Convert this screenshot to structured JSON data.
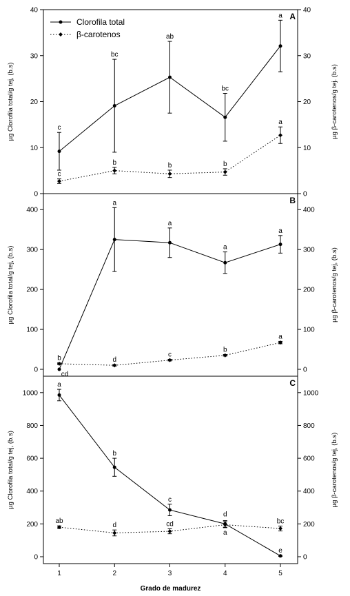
{
  "chart_data": [
    {
      "type": "line",
      "panel_label": "A",
      "x": [
        1,
        2,
        3,
        4,
        5
      ],
      "left_axis": {
        "label": "µg Clorofila total/g tej, (b.s)",
        "ylim": [
          0,
          40
        ],
        "ticks": [
          0,
          10,
          20,
          30,
          40
        ]
      },
      "right_axis": {
        "label": "µg β-carotenos/g tej. (b.s)",
        "ylim": [
          0,
          40
        ],
        "ticks": [
          0,
          10,
          20,
          30,
          40
        ]
      },
      "legend": {
        "position": "top-left",
        "entries": [
          "Clorofila total",
          "β-carotenos"
        ]
      },
      "series": [
        {
          "name": "Clorofila total",
          "axis": "left",
          "style": "solid",
          "values": [
            9.2,
            19.1,
            25.3,
            16.6,
            32.1
          ],
          "errors": [
            4.1,
            10.1,
            7.8,
            5.2,
            5.6
          ],
          "letters": [
            "c",
            "bc",
            "ab",
            "bc",
            "a"
          ]
        },
        {
          "name": "β-carotenos",
          "axis": "right",
          "style": "dotted",
          "values": [
            2.7,
            5.0,
            4.3,
            4.7,
            12.7
          ],
          "errors": [
            0.5,
            0.7,
            0.8,
            0.7,
            1.8
          ],
          "letters": [
            "c",
            "b",
            "b",
            "b",
            "a"
          ]
        }
      ]
    },
    {
      "type": "line",
      "panel_label": "B",
      "x": [
        1,
        2,
        3,
        4,
        5
      ],
      "left_axis": {
        "label": "µg Clorofila total/g tej, (b.s)",
        "ylim": [
          0,
          440
        ],
        "ticks": [
          0,
          100,
          200,
          300,
          400
        ]
      },
      "right_axis": {
        "label": "µg β-carotenos/g tej, (b.s)",
        "ylim": [
          0,
          440
        ],
        "ticks": [
          0,
          100,
          200,
          300,
          400
        ]
      },
      "series": [
        {
          "name": "Clorofila total",
          "axis": "left",
          "style": "solid",
          "values": [
            0,
            325,
            317,
            267,
            313
          ],
          "errors": [
            0,
            80,
            37,
            27,
            22
          ],
          "letters": [
            "cd",
            "a",
            "a",
            "a",
            "a"
          ]
        },
        {
          "name": "β-carotenos",
          "axis": "right",
          "style": "dotted",
          "values": [
            14,
            10,
            23,
            35,
            67
          ],
          "errors": [
            2,
            2,
            2,
            2,
            3
          ],
          "letters": [
            "b",
            "d",
            "c",
            "b",
            "a"
          ]
        }
      ]
    },
    {
      "type": "line",
      "panel_label": "C",
      "x": [
        1,
        2,
        3,
        4,
        5
      ],
      "xlabel": "Grado de madurez",
      "left_axis": {
        "label": "µg Clorofila total/g tej, (b.s)",
        "ylim": [
          0,
          1100
        ],
        "ticks": [
          0,
          200,
          400,
          600,
          800,
          1000
        ]
      },
      "right_axis": {
        "label": "µg β-carotenos/g tej, (b.s)",
        "ylim": [
          0,
          1100
        ],
        "ticks": [
          0,
          200,
          400,
          600,
          800,
          1000
        ]
      },
      "series": [
        {
          "name": "Clorofila total",
          "axis": "left",
          "style": "solid",
          "values": [
            985,
            545,
            285,
            200,
            5
          ],
          "errors": [
            35,
            55,
            35,
            20,
            3
          ],
          "letters": [
            "a",
            "b",
            "c",
            "d",
            "e"
          ]
        },
        {
          "name": "β-carotenos",
          "axis": "right",
          "style": "dotted",
          "values": [
            180,
            145,
            155,
            195,
            172
          ],
          "errors": [
            8,
            18,
            15,
            18,
            15
          ],
          "letters": [
            "ab",
            "d",
            "cd",
            "a",
            "bc"
          ]
        }
      ]
    }
  ]
}
